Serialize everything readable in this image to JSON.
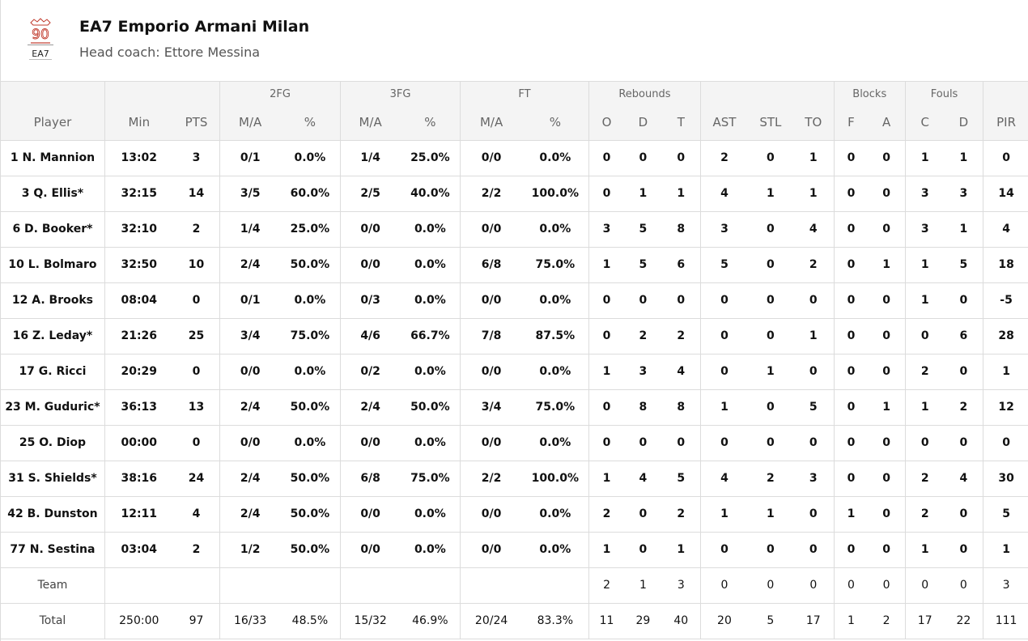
{
  "team": {
    "logo_lines": [
      "90",
      "EA7"
    ],
    "name": "EA7 Emporio Armani Milan",
    "coach": "Head coach: Ettore Messina"
  },
  "header": {
    "groups": [
      "2FG",
      "3FG",
      "FT",
      "Rebounds",
      "Blocks",
      "Fouls"
    ],
    "columns": [
      "Player",
      "Min",
      "PTS",
      "M/A",
      "%",
      "M/A",
      "%",
      "M/A",
      "%",
      "O",
      "D",
      "T",
      "AST",
      "STL",
      "TO",
      "F",
      "A",
      "C",
      "D",
      "PIR"
    ]
  },
  "rows": [
    [
      "1 N. Mannion",
      "13:02",
      "3",
      "0/1",
      "0.0%",
      "1/4",
      "25.0%",
      "0/0",
      "0.0%",
      "0",
      "0",
      "0",
      "2",
      "0",
      "1",
      "0",
      "0",
      "1",
      "1",
      "0"
    ],
    [
      "3 Q. Ellis*",
      "32:15",
      "14",
      "3/5",
      "60.0%",
      "2/5",
      "40.0%",
      "2/2",
      "100.0%",
      "0",
      "1",
      "1",
      "4",
      "1",
      "1",
      "0",
      "0",
      "3",
      "3",
      "14"
    ],
    [
      "6 D. Booker*",
      "32:10",
      "2",
      "1/4",
      "25.0%",
      "0/0",
      "0.0%",
      "0/0",
      "0.0%",
      "3",
      "5",
      "8",
      "3",
      "0",
      "4",
      "0",
      "0",
      "3",
      "1",
      "4"
    ],
    [
      "10 L. Bolmaro",
      "32:50",
      "10",
      "2/4",
      "50.0%",
      "0/0",
      "0.0%",
      "6/8",
      "75.0%",
      "1",
      "5",
      "6",
      "5",
      "0",
      "2",
      "0",
      "1",
      "1",
      "5",
      "18"
    ],
    [
      "12 A. Brooks",
      "08:04",
      "0",
      "0/1",
      "0.0%",
      "0/3",
      "0.0%",
      "0/0",
      "0.0%",
      "0",
      "0",
      "0",
      "0",
      "0",
      "0",
      "0",
      "0",
      "1",
      "0",
      "-5"
    ],
    [
      "16 Z. Leday*",
      "21:26",
      "25",
      "3/4",
      "75.0%",
      "4/6",
      "66.7%",
      "7/8",
      "87.5%",
      "0",
      "2",
      "2",
      "0",
      "0",
      "1",
      "0",
      "0",
      "0",
      "6",
      "28"
    ],
    [
      "17 G. Ricci",
      "20:29",
      "0",
      "0/0",
      "0.0%",
      "0/2",
      "0.0%",
      "0/0",
      "0.0%",
      "1",
      "3",
      "4",
      "0",
      "1",
      "0",
      "0",
      "0",
      "2",
      "0",
      "1"
    ],
    [
      "23 M. Guduric*",
      "36:13",
      "13",
      "2/4",
      "50.0%",
      "2/4",
      "50.0%",
      "3/4",
      "75.0%",
      "0",
      "8",
      "8",
      "1",
      "0",
      "5",
      "0",
      "1",
      "1",
      "2",
      "12"
    ],
    [
      "25 O. Diop",
      "00:00",
      "0",
      "0/0",
      "0.0%",
      "0/0",
      "0.0%",
      "0/0",
      "0.0%",
      "0",
      "0",
      "0",
      "0",
      "0",
      "0",
      "0",
      "0",
      "0",
      "0",
      "0"
    ],
    [
      "31 S. Shields*",
      "38:16",
      "24",
      "2/4",
      "50.0%",
      "6/8",
      "75.0%",
      "2/2",
      "100.0%",
      "1",
      "4",
      "5",
      "4",
      "2",
      "3",
      "0",
      "0",
      "2",
      "4",
      "30"
    ],
    [
      "42 B. Dunston",
      "12:11",
      "4",
      "2/4",
      "50.0%",
      "0/0",
      "0.0%",
      "0/0",
      "0.0%",
      "2",
      "0",
      "2",
      "1",
      "1",
      "0",
      "1",
      "0",
      "2",
      "0",
      "5"
    ],
    [
      "77 N. Sestina",
      "03:04",
      "2",
      "1/2",
      "50.0%",
      "0/0",
      "0.0%",
      "0/0",
      "0.0%",
      "1",
      "0",
      "1",
      "0",
      "0",
      "0",
      "0",
      "0",
      "1",
      "0",
      "1"
    ],
    [
      "Team",
      "",
      "",
      "",
      "",
      "",
      "",
      "",
      "",
      "2",
      "1",
      "3",
      "0",
      "0",
      "0",
      "0",
      "0",
      "0",
      "0",
      "3"
    ],
    [
      "Total",
      "250:00",
      "97",
      "16/33",
      "48.5%",
      "15/32",
      "46.9%",
      "20/24",
      "83.3%",
      "11",
      "29",
      "40",
      "20",
      "5",
      "17",
      "1",
      "2",
      "17",
      "22",
      "111"
    ]
  ],
  "colors": {
    "border": "#dcdcdc",
    "header_bg": "#f4f4f4",
    "logo": "#c0392b"
  }
}
